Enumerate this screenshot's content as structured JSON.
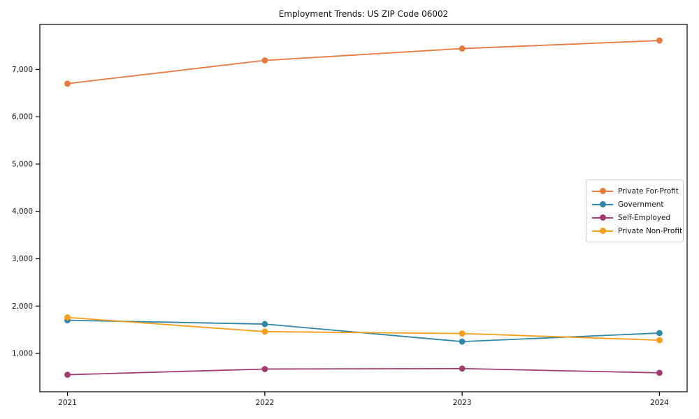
{
  "chart_data": {
    "type": "line",
    "title": "Employment Trends: US ZIP Code 06002",
    "xlabel": "",
    "ylabel": "",
    "x": [
      2021,
      2022,
      2023,
      2024
    ],
    "x_tick_labels": [
      "2021",
      "2022",
      "2023",
      "2024"
    ],
    "series": [
      {
        "name": "Private For-Profit",
        "color": "#e8793e",
        "values": [
          6700,
          7190,
          7440,
          7610
        ]
      },
      {
        "name": "Government",
        "color": "#2e87a5",
        "values": [
          1700,
          1620,
          1250,
          1430
        ]
      },
      {
        "name": "Self-Employed",
        "color": "#a23a74",
        "values": [
          550,
          670,
          680,
          590
        ]
      },
      {
        "name": "Private Non-Profit",
        "color": "#f59e1b",
        "values": [
          1760,
          1460,
          1420,
          1280
        ]
      }
    ],
    "y_ticks": [
      1000,
      2000,
      3000,
      4000,
      5000,
      6000,
      7000
    ],
    "y_tick_labels": [
      "1,000",
      "2,000",
      "3,000",
      "4,000",
      "5,000",
      "6,000",
      "7,000"
    ],
    "ylim": [
      190,
      7950
    ],
    "xlim": [
      2020.86,
      2024.14
    ],
    "grid": false,
    "legend_position": "center-right",
    "marker": "circle",
    "axis_color": "#000000",
    "text_color": "#111111"
  }
}
